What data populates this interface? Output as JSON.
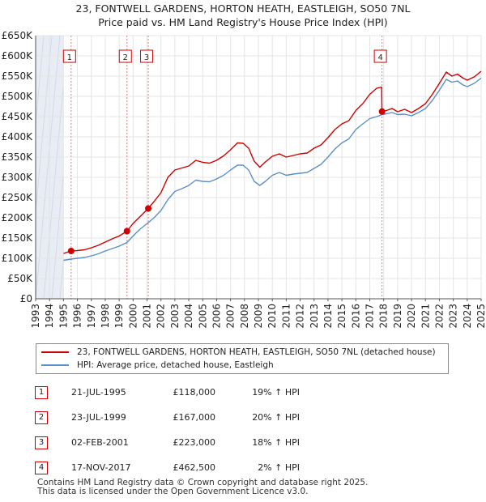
{
  "title": {
    "line1": "23, FONTWELL GARDENS, HORTON HEATH, EASTLEIGH, SO50 7NL",
    "line2": "Price paid vs. HM Land Registry's House Price Index (HPI)"
  },
  "colors": {
    "property": "#cc0000",
    "hpi": "#5b8fc9",
    "shade": "#e8ecf5",
    "vline": "#e08080"
  },
  "legend": {
    "property_label": "23, FONTWELL GARDENS, HORTON HEATH, EASTLEIGH, SO50 7NL (detached house)",
    "hpi_label": "HPI: Average price, detached house, Eastleigh"
  },
  "sales": [
    {
      "num": "1",
      "date": "21-JUL-1995",
      "price": "£118,000",
      "hpi": "19% ↑ HPI"
    },
    {
      "num": "2",
      "date": "23-JUL-1999",
      "price": "£167,000",
      "hpi": "20% ↑ HPI"
    },
    {
      "num": "3",
      "date": "02-FEB-2001",
      "price": "£223,000",
      "hpi": "18% ↑ HPI"
    },
    {
      "num": "4",
      "date": "17-NOV-2017",
      "price": "£462,500",
      "hpi": "2% ↑ HPI"
    }
  ],
  "footer": {
    "line1": "Contains HM Land Registry data © Crown copyright and database right 2025.",
    "line2": "This data is licensed under the Open Government Licence v3.0."
  },
  "chart_data": {
    "type": "line",
    "title": "Price paid vs. HM Land Registry's House Price Index (HPI)",
    "xlim": [
      1993,
      2025
    ],
    "ylim": [
      0,
      650000
    ],
    "x_ticks": [
      1993,
      1994,
      1995,
      1996,
      1997,
      1998,
      1999,
      2000,
      2001,
      2002,
      2003,
      2004,
      2005,
      2006,
      2007,
      2008,
      2009,
      2010,
      2011,
      2012,
      2013,
      2014,
      2015,
      2016,
      2017,
      2018,
      2019,
      2020,
      2021,
      2022,
      2023,
      2024,
      2025
    ],
    "y_ticks": [
      {
        "value": 0,
        "label": "£0"
      },
      {
        "value": 50000,
        "label": "£50K"
      },
      {
        "value": 100000,
        "label": "£100K"
      },
      {
        "value": 150000,
        "label": "£150K"
      },
      {
        "value": 200000,
        "label": "£200K"
      },
      {
        "value": 250000,
        "label": "£250K"
      },
      {
        "value": 300000,
        "label": "£300K"
      },
      {
        "value": 350000,
        "label": "£350K"
      },
      {
        "value": 400000,
        "label": "£400K"
      },
      {
        "value": 450000,
        "label": "£450K"
      },
      {
        "value": 500000,
        "label": "£500K"
      },
      {
        "value": 550000,
        "label": "£550K"
      },
      {
        "value": 600000,
        "label": "£600K"
      },
      {
        "value": 650000,
        "label": "£650K"
      }
    ],
    "data_start_year": 1995,
    "series": [
      {
        "name": "23, FONTWELL GARDENS, HORTON HEATH, EASTLEIGH, SO50 7NL (detached house)",
        "color": "#cc0000",
        "points": [
          [
            1995.0,
            112000
          ],
          [
            1995.55,
            118000
          ],
          [
            1996.0,
            119000
          ],
          [
            1996.5,
            121000
          ],
          [
            1997.0,
            126000
          ],
          [
            1997.5,
            132000
          ],
          [
            1998.0,
            140000
          ],
          [
            1998.5,
            148000
          ],
          [
            1999.0,
            155000
          ],
          [
            1999.56,
            167000
          ],
          [
            2000.0,
            186000
          ],
          [
            2000.5,
            203000
          ],
          [
            2001.09,
            223000
          ],
          [
            2001.5,
            240000
          ],
          [
            2002.0,
            262000
          ],
          [
            2002.5,
            300000
          ],
          [
            2003.0,
            318000
          ],
          [
            2003.5,
            323000
          ],
          [
            2004.0,
            328000
          ],
          [
            2004.5,
            342000
          ],
          [
            2005.0,
            337000
          ],
          [
            2005.5,
            335000
          ],
          [
            2006.0,
            342000
          ],
          [
            2006.5,
            353000
          ],
          [
            2007.0,
            368000
          ],
          [
            2007.5,
            385000
          ],
          [
            2007.9,
            384000
          ],
          [
            2008.3,
            372000
          ],
          [
            2008.7,
            340000
          ],
          [
            2009.1,
            325000
          ],
          [
            2009.5,
            338000
          ],
          [
            2010.0,
            352000
          ],
          [
            2010.5,
            358000
          ],
          [
            2011.0,
            350000
          ],
          [
            2011.5,
            354000
          ],
          [
            2012.0,
            358000
          ],
          [
            2012.5,
            360000
          ],
          [
            2013.0,
            372000
          ],
          [
            2013.5,
            380000
          ],
          [
            2014.0,
            398000
          ],
          [
            2014.5,
            418000
          ],
          [
            2015.0,
            432000
          ],
          [
            2015.5,
            440000
          ],
          [
            2016.0,
            465000
          ],
          [
            2016.5,
            482000
          ],
          [
            2017.0,
            505000
          ],
          [
            2017.5,
            520000
          ],
          [
            2017.85,
            523000
          ],
          [
            2017.88,
            462500
          ],
          [
            2018.2,
            465000
          ],
          [
            2018.6,
            470000
          ],
          [
            2019.0,
            462000
          ],
          [
            2019.5,
            468000
          ],
          [
            2020.0,
            460000
          ],
          [
            2020.5,
            470000
          ],
          [
            2021.0,
            482000
          ],
          [
            2021.5,
            505000
          ],
          [
            2022.0,
            532000
          ],
          [
            2022.5,
            560000
          ],
          [
            2022.9,
            550000
          ],
          [
            2023.3,
            555000
          ],
          [
            2023.7,
            545000
          ],
          [
            2024.0,
            540000
          ],
          [
            2024.5,
            548000
          ],
          [
            2025.0,
            562000
          ]
        ]
      },
      {
        "name": "HPI: Average price, detached house, Eastleigh",
        "color": "#5b8fc9",
        "points": [
          [
            1995.0,
            95000
          ],
          [
            1995.55,
            98000
          ],
          [
            1996.0,
            100000
          ],
          [
            1996.5,
            102000
          ],
          [
            1997.0,
            106000
          ],
          [
            1997.5,
            111000
          ],
          [
            1998.0,
            118000
          ],
          [
            1998.5,
            124000
          ],
          [
            1999.0,
            130000
          ],
          [
            1999.56,
            139000
          ],
          [
            2000.0,
            155000
          ],
          [
            2000.5,
            172000
          ],
          [
            2001.09,
            188000
          ],
          [
            2001.5,
            200000
          ],
          [
            2002.0,
            218000
          ],
          [
            2002.5,
            245000
          ],
          [
            2003.0,
            265000
          ],
          [
            2003.5,
            272000
          ],
          [
            2004.0,
            280000
          ],
          [
            2004.5,
            293000
          ],
          [
            2005.0,
            290000
          ],
          [
            2005.5,
            289000
          ],
          [
            2006.0,
            296000
          ],
          [
            2006.5,
            305000
          ],
          [
            2007.0,
            318000
          ],
          [
            2007.5,
            330000
          ],
          [
            2007.9,
            330000
          ],
          [
            2008.3,
            318000
          ],
          [
            2008.7,
            290000
          ],
          [
            2009.1,
            280000
          ],
          [
            2009.5,
            290000
          ],
          [
            2010.0,
            305000
          ],
          [
            2010.5,
            312000
          ],
          [
            2011.0,
            305000
          ],
          [
            2011.5,
            308000
          ],
          [
            2012.0,
            310000
          ],
          [
            2012.5,
            312000
          ],
          [
            2013.0,
            322000
          ],
          [
            2013.5,
            332000
          ],
          [
            2014.0,
            350000
          ],
          [
            2014.5,
            370000
          ],
          [
            2015.0,
            385000
          ],
          [
            2015.5,
            395000
          ],
          [
            2016.0,
            418000
          ],
          [
            2016.5,
            432000
          ],
          [
            2017.0,
            445000
          ],
          [
            2017.5,
            450000
          ],
          [
            2017.88,
            455000
          ],
          [
            2018.2,
            457000
          ],
          [
            2018.6,
            460000
          ],
          [
            2019.0,
            455000
          ],
          [
            2019.5,
            456000
          ],
          [
            2020.0,
            452000
          ],
          [
            2020.5,
            460000
          ],
          [
            2021.0,
            470000
          ],
          [
            2021.5,
            490000
          ],
          [
            2022.0,
            515000
          ],
          [
            2022.5,
            542000
          ],
          [
            2022.9,
            535000
          ],
          [
            2023.3,
            538000
          ],
          [
            2023.7,
            528000
          ],
          [
            2024.0,
            524000
          ],
          [
            2024.5,
            532000
          ],
          [
            2025.0,
            545000
          ]
        ]
      }
    ],
    "sale_markers": [
      {
        "num": "1",
        "x": 1995.55,
        "y": 118000
      },
      {
        "num": "2",
        "x": 1999.56,
        "y": 167000
      },
      {
        "num": "3",
        "x": 2001.09,
        "y": 223000
      },
      {
        "num": "4",
        "x": 2017.88,
        "y": 462500
      }
    ]
  }
}
